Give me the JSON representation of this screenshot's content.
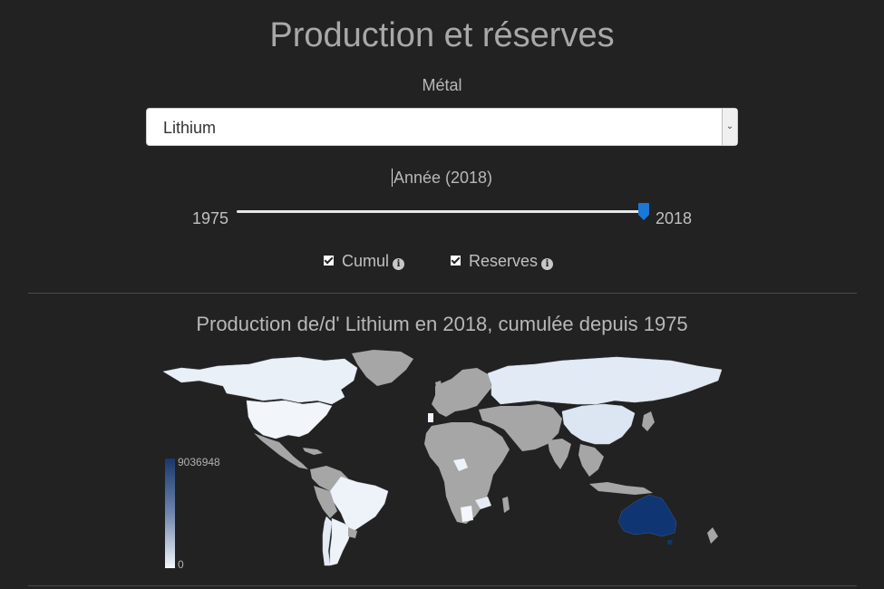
{
  "header": {
    "title": "Production et réserves"
  },
  "metal": {
    "label": "Métal",
    "selected": "Lithium"
  },
  "year": {
    "label": "Année (2018)",
    "min": "1975",
    "max": "2018",
    "value": 2018
  },
  "options": [
    {
      "label": "Cumul",
      "checked": true
    },
    {
      "label": "Reserves",
      "checked": true
    }
  ],
  "map": {
    "title": "Production de/d' Lithium en 2018, cumulée depuis 1975",
    "legend_max": "9036948",
    "legend_min": "0",
    "colors": {
      "no_data": "#a6a6a6",
      "low": "#eef3fa",
      "mid": "#dce6f3",
      "high": "#0f3573",
      "background": "#222222"
    }
  }
}
